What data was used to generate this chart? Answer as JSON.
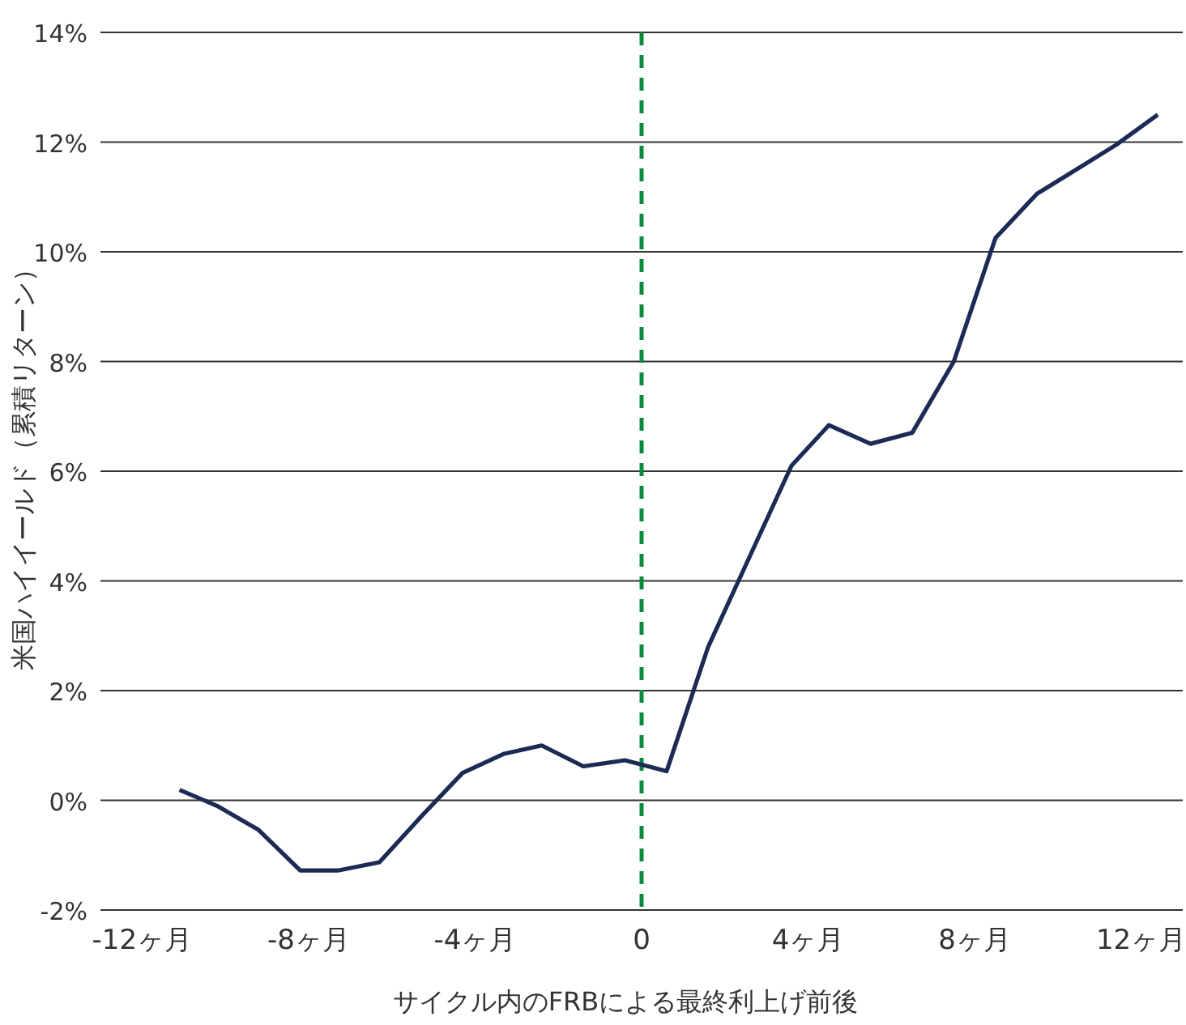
{
  "chart_data": {
    "type": "line",
    "xlabel": "サイクル内のFRBによる最終利上げ前後",
    "ylabel": "米国ハイイールド（累積リターン）",
    "xlim": [
      -13,
      13
    ],
    "ylim": [
      -2,
      14
    ],
    "xticks": [
      {
        "value": -12,
        "label": "-12ヶ月"
      },
      {
        "value": -8,
        "label": "-8ヶ月"
      },
      {
        "value": -4,
        "label": "-4ヶ月"
      },
      0,
      {
        "value": 4,
        "label": "4ヶ月"
      },
      {
        "value": 8,
        "label": "8ヶ月"
      },
      {
        "value": 12,
        "label": "12ヶ月"
      }
    ],
    "yticks": [
      {
        "value": -2,
        "label": "-2%"
      },
      {
        "value": 0,
        "label": "0%"
      },
      {
        "value": 2,
        "label": "2%"
      },
      {
        "value": 4,
        "label": "4%"
      },
      {
        "value": 6,
        "label": "6%"
      },
      {
        "value": 8,
        "label": "8%"
      },
      {
        "value": 10,
        "label": "10%"
      },
      {
        "value": 12,
        "label": "12%"
      },
      {
        "value": 14,
        "label": "14%"
      }
    ],
    "grid": "y",
    "marker": "none",
    "line_style": "solid",
    "ref_lines": [
      {
        "axis": "x",
        "value": 0,
        "color": "#0a8a3c",
        "line_style": "dashed"
      }
    ],
    "series": [
      {
        "color": "#1c2b55",
        "x": [
          -11.1,
          -10.2,
          -9.2,
          -8.2,
          -7.3,
          -6.3,
          -5.3,
          -4.3,
          -3.3,
          -2.4,
          -1.4,
          -0.4,
          0.6,
          1.6,
          2.6,
          3.6,
          4.5,
          5.5,
          6.5,
          7.5,
          8.5,
          9.5,
          10.4,
          11.4,
          12.4
        ],
        "values": [
          0.19,
          -0.1,
          -0.54,
          -1.28,
          -1.28,
          -1.13,
          -0.3,
          0.5,
          0.85,
          1.0,
          0.62,
          0.73,
          0.53,
          2.8,
          4.45,
          6.1,
          6.84,
          6.5,
          6.7,
          8.0,
          10.25,
          11.06,
          11.48,
          11.95,
          12.5
        ]
      }
    ]
  }
}
